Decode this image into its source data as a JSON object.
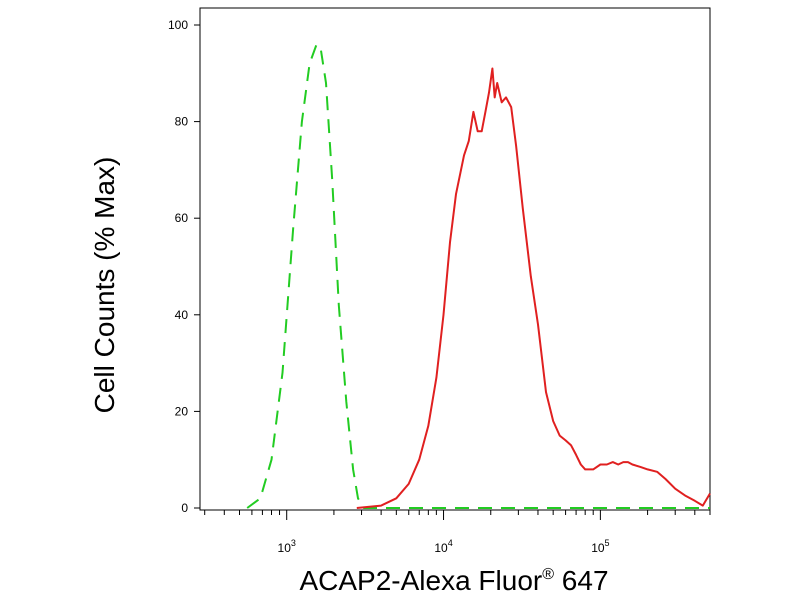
{
  "chart_data": {
    "type": "line",
    "title": "",
    "xlabel": "ACAP2-Alexa Fluor",
    "xlabel_superscript": "®",
    "xlabel_suffix": " 647",
    "ylabel": "Cell Counts (% Max)",
    "x_scale": "log",
    "xlim": [
      280,
      500000
    ],
    "ylim": [
      0,
      100
    ],
    "grid": false,
    "y_ticks": [
      0,
      20,
      40,
      60,
      80,
      100
    ],
    "y_tick_labels": [
      "0",
      "20",
      "40",
      "60",
      "80",
      "100"
    ],
    "x_major_ticks": [
      {
        "value": 1000,
        "base": "10",
        "exp": "3"
      },
      {
        "value": 10000,
        "base": "10",
        "exp": "4"
      },
      {
        "value": 100000,
        "base": "10",
        "exp": "5"
      }
    ],
    "series": [
      {
        "color": "#22cc22",
        "line_style": "dashed",
        "x": [
          560,
          680,
          800,
          940,
          1100,
          1250,
          1400,
          1550,
          1650,
          1780,
          1950,
          2150,
          2400,
          2650,
          2850,
          3100,
          3500,
          5000,
          10000,
          50000,
          200000,
          500000
        ],
        "y": [
          0,
          2,
          10,
          28,
          58,
          80,
          92,
          96,
          95,
          88,
          68,
          42,
          22,
          8,
          2,
          0,
          0,
          0,
          0,
          0,
          0,
          0
        ]
      },
      {
        "color": "#e02020",
        "line_style": "solid",
        "x": [
          2800,
          4000,
          5000,
          6000,
          7000,
          8000,
          9000,
          10000,
          11000,
          12000,
          13500,
          14500,
          15500,
          16500,
          17500,
          18500,
          19500,
          20500,
          21200,
          22000,
          23500,
          25000,
          27000,
          29000,
          32000,
          36000,
          40000,
          45000,
          50000,
          55000,
          60000,
          65000,
          70000,
          75000,
          80000,
          90000,
          100000,
          110000,
          120000,
          130000,
          140000,
          150000,
          160000,
          180000,
          200000,
          230000,
          260000,
          300000,
          350000,
          400000,
          450000,
          500000
        ],
        "y": [
          0,
          0.5,
          2,
          5,
          10,
          17,
          27,
          40,
          55,
          65,
          73,
          76,
          82,
          78,
          78,
          82,
          86,
          91,
          85,
          88,
          84,
          85,
          83,
          75,
          62,
          48,
          38,
          24,
          18,
          15,
          14,
          13,
          11,
          9,
          8,
          8,
          9,
          9,
          9.5,
          9,
          9.5,
          9.5,
          9,
          8.5,
          8,
          7.5,
          6,
          4,
          2.5,
          1.5,
          0.5,
          3
        ]
      }
    ]
  }
}
